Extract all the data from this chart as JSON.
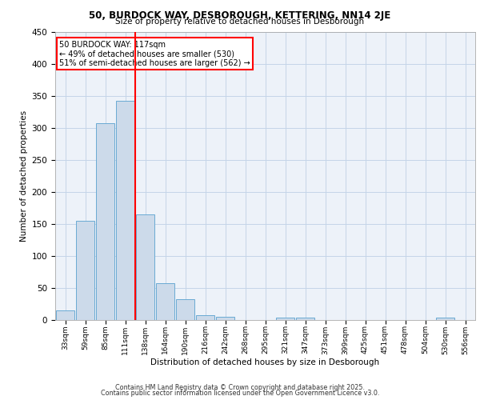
{
  "title1": "50, BURDOCK WAY, DESBOROUGH, KETTERING, NN14 2JE",
  "title2": "Size of property relative to detached houses in Desborough",
  "xlabel": "Distribution of detached houses by size in Desborough",
  "ylabel": "Number of detached properties",
  "categories": [
    "33sqm",
    "59sqm",
    "85sqm",
    "111sqm",
    "138sqm",
    "164sqm",
    "190sqm",
    "216sqm",
    "242sqm",
    "268sqm",
    "295sqm",
    "321sqm",
    "347sqm",
    "373sqm",
    "399sqm",
    "425sqm",
    "451sqm",
    "478sqm",
    "504sqm",
    "530sqm",
    "556sqm"
  ],
  "values": [
    15,
    155,
    308,
    343,
    165,
    57,
    33,
    8,
    5,
    0,
    0,
    4,
    4,
    0,
    0,
    0,
    0,
    0,
    0,
    4,
    0
  ],
  "bar_color": "#ccdaea",
  "bar_edgecolor": "#6aaad4",
  "redline_x": 3.5,
  "annotation_text": "50 BURDOCK WAY: 117sqm\n← 49% of detached houses are smaller (530)\n51% of semi-detached houses are larger (562) →",
  "annotation_box_edgecolor": "red",
  "redline_color": "red",
  "ylim": [
    0,
    450
  ],
  "yticks": [
    0,
    50,
    100,
    150,
    200,
    250,
    300,
    350,
    400,
    450
  ],
  "footer1": "Contains HM Land Registry data © Crown copyright and database right 2025.",
  "footer2": "Contains public sector information licensed under the Open Government Licence v3.0.",
  "bg_color": "#edf2f9",
  "grid_color": "#c5d5e8"
}
